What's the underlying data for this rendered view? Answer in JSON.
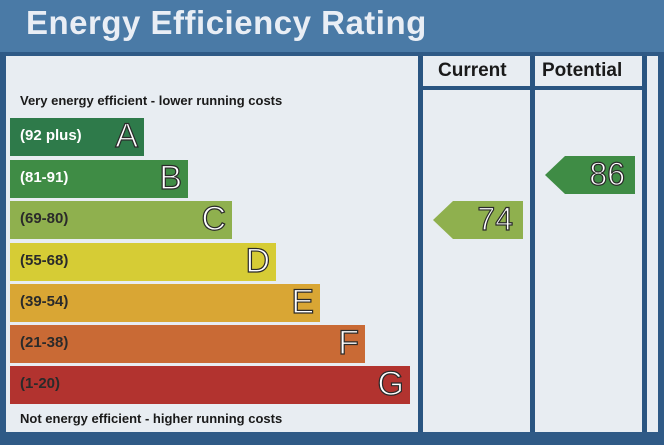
{
  "title": "Energy Efficiency Rating",
  "columns": {
    "current": "Current",
    "potential": "Potential"
  },
  "top_caption": "Very energy efficient - lower running costs",
  "bottom_caption": "Not energy efficient - higher running costs",
  "bands": [
    {
      "range": "(92 plus)",
      "letter": "A",
      "color": "#2e7a4a"
    },
    {
      "range": "(81-91)",
      "letter": "B",
      "color": "#3f8c45"
    },
    {
      "range": "(69-80)",
      "letter": "C",
      "color": "#8fb04e"
    },
    {
      "range": "(55-68)",
      "letter": "D",
      "color": "#d6cc35"
    },
    {
      "range": "(39-54)",
      "letter": "E",
      "color": "#d9a634"
    },
    {
      "range": "(21-38)",
      "letter": "F",
      "color": "#c96a35"
    },
    {
      "range": "(1-20)",
      "letter": "G",
      "color": "#b2332f"
    }
  ],
  "current": {
    "value": "74",
    "band": "C",
    "color": "#8fb04e"
  },
  "potential": {
    "value": "86",
    "band": "B",
    "color": "#3f8c45"
  }
}
